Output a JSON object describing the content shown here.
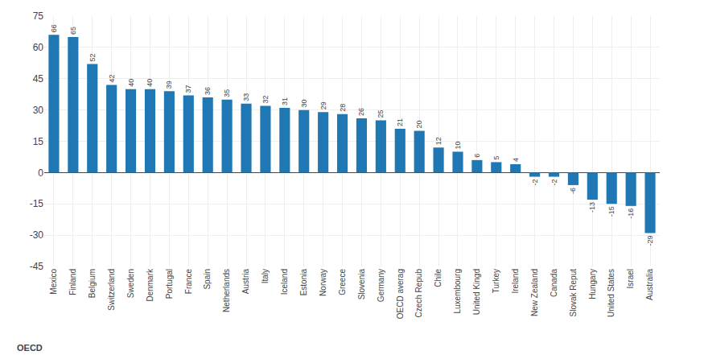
{
  "chart_data": {
    "type": "bar",
    "categories": [
      "Mexico",
      "Finland",
      "Belgium",
      "Switzerland",
      "Sweden",
      "Denmark",
      "Portugal",
      "France",
      "Spain",
      "Netherlands",
      "Austria",
      "Italy",
      "Iceland",
      "Estonia",
      "Norway",
      "Greece",
      "Slovenia",
      "Germany",
      "OECD averag",
      "Czech Repub",
      "Chile",
      "Luxembourg",
      "United Kingd",
      "Turkey",
      "Ireland",
      "New Zealand",
      "Canada",
      "Slovak Reput",
      "Hungary",
      "United States",
      "Israel",
      "Australia"
    ],
    "values": [
      66,
      65,
      52,
      42,
      40,
      40,
      39,
      37,
      36,
      35,
      33,
      32,
      31,
      30,
      29,
      28,
      26,
      25,
      21,
      20,
      12,
      10,
      6,
      5,
      4,
      -2,
      -2,
      -6,
      -13,
      -15,
      -16,
      -29
    ],
    "ylim": [
      -45,
      75
    ],
    "yticks": [
      -45,
      -30,
      -15,
      0,
      15,
      30,
      45,
      60,
      75
    ],
    "y2lim": [
      -45,
      75
    ],
    "y2ticks": [
      -45,
      -30,
      -15,
      0,
      15,
      30,
      45,
      60,
      75
    ],
    "grid": true,
    "data_labels": true,
    "annotations": [
      "OECD"
    ]
  }
}
